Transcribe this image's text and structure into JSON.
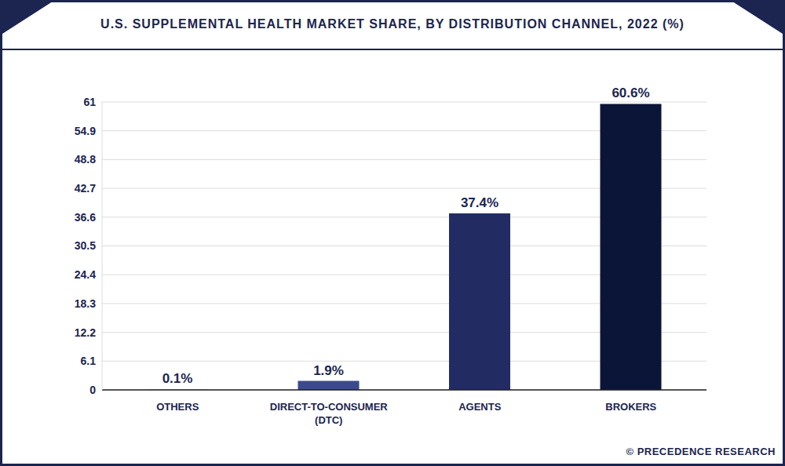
{
  "chart_data": {
    "type": "bar",
    "title": "U.S. SUPPLEMENTAL HEALTH MARKET SHARE, BY DISTRIBUTION CHANNEL, 2022 (%)",
    "categories": [
      "OTHERS",
      "DIRECT-TO-CONSUMER (DTC)",
      "AGENTS",
      "BROKERS"
    ],
    "values": [
      0.1,
      1.9,
      37.4,
      60.6
    ],
    "value_labels": [
      "0.1%",
      "1.9%",
      "37.4%",
      "60.6%"
    ],
    "data_labels": true,
    "colors": [
      "#8e9fd3",
      "#3b4a8c",
      "#222c63",
      "#0b1537"
    ],
    "ylim": [
      0,
      61
    ],
    "yticks": [
      0,
      6.1,
      12.2,
      18.3,
      24.4,
      30.5,
      36.6,
      42.7,
      48.8,
      54.9,
      61
    ],
    "grid": true,
    "source": "© PRECEDENCE RESEARCH"
  }
}
